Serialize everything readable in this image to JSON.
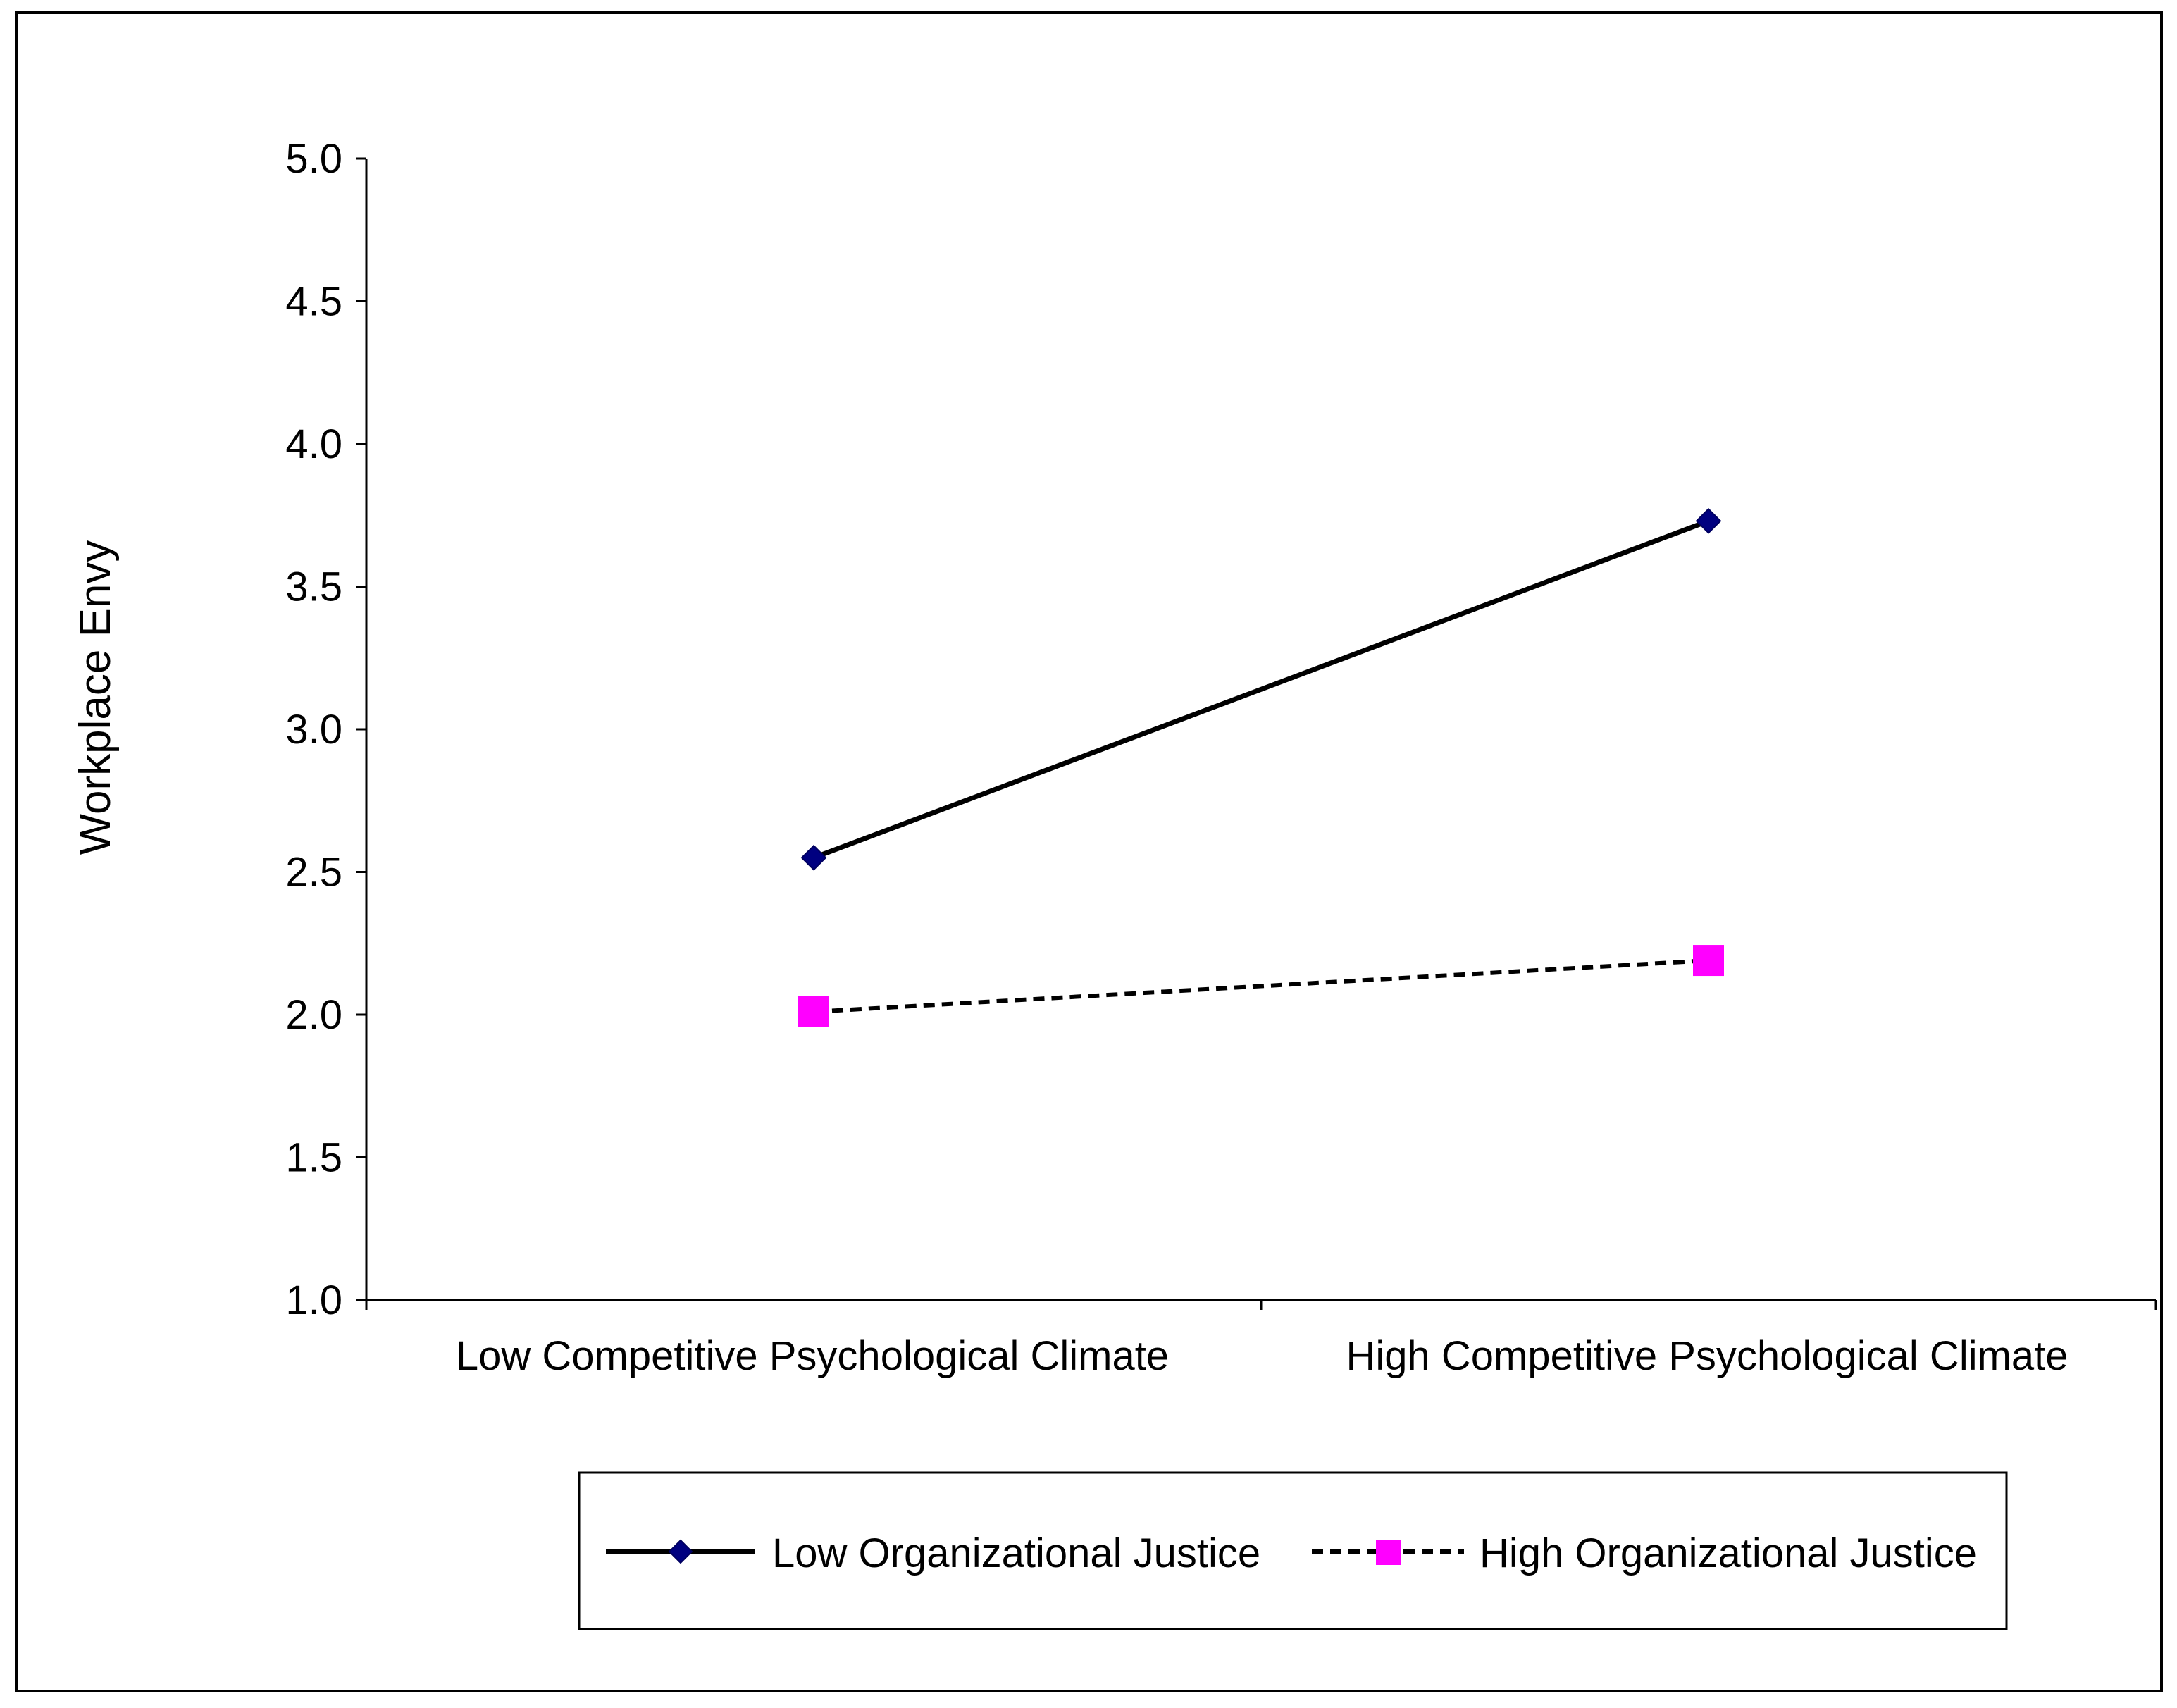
{
  "chart_data": {
    "type": "line",
    "title": "",
    "xlabel": "",
    "ylabel": "Workplace Envy",
    "categories": [
      "Low Competitive Psychological Climate",
      "High Competitive Psychological Climate"
    ],
    "ylim": [
      1.0,
      5.0
    ],
    "yticks": [
      "1.0",
      "1.5",
      "2.0",
      "2.5",
      "3.0",
      "3.5",
      "4.0",
      "4.5",
      "5.0"
    ],
    "grid": false,
    "legend_position": "bottom",
    "series": [
      {
        "name": "Low Organizational Justice",
        "values": [
          2.55,
          3.73
        ],
        "color": "#000000",
        "marker": "diamond",
        "marker_color": "#000080",
        "line_style": "solid"
      },
      {
        "name": "High Organizational Justice",
        "values": [
          2.01,
          2.19
        ],
        "color": "#000000",
        "marker": "square",
        "marker_color": "#FF00FF",
        "line_style": "dashed"
      }
    ]
  }
}
